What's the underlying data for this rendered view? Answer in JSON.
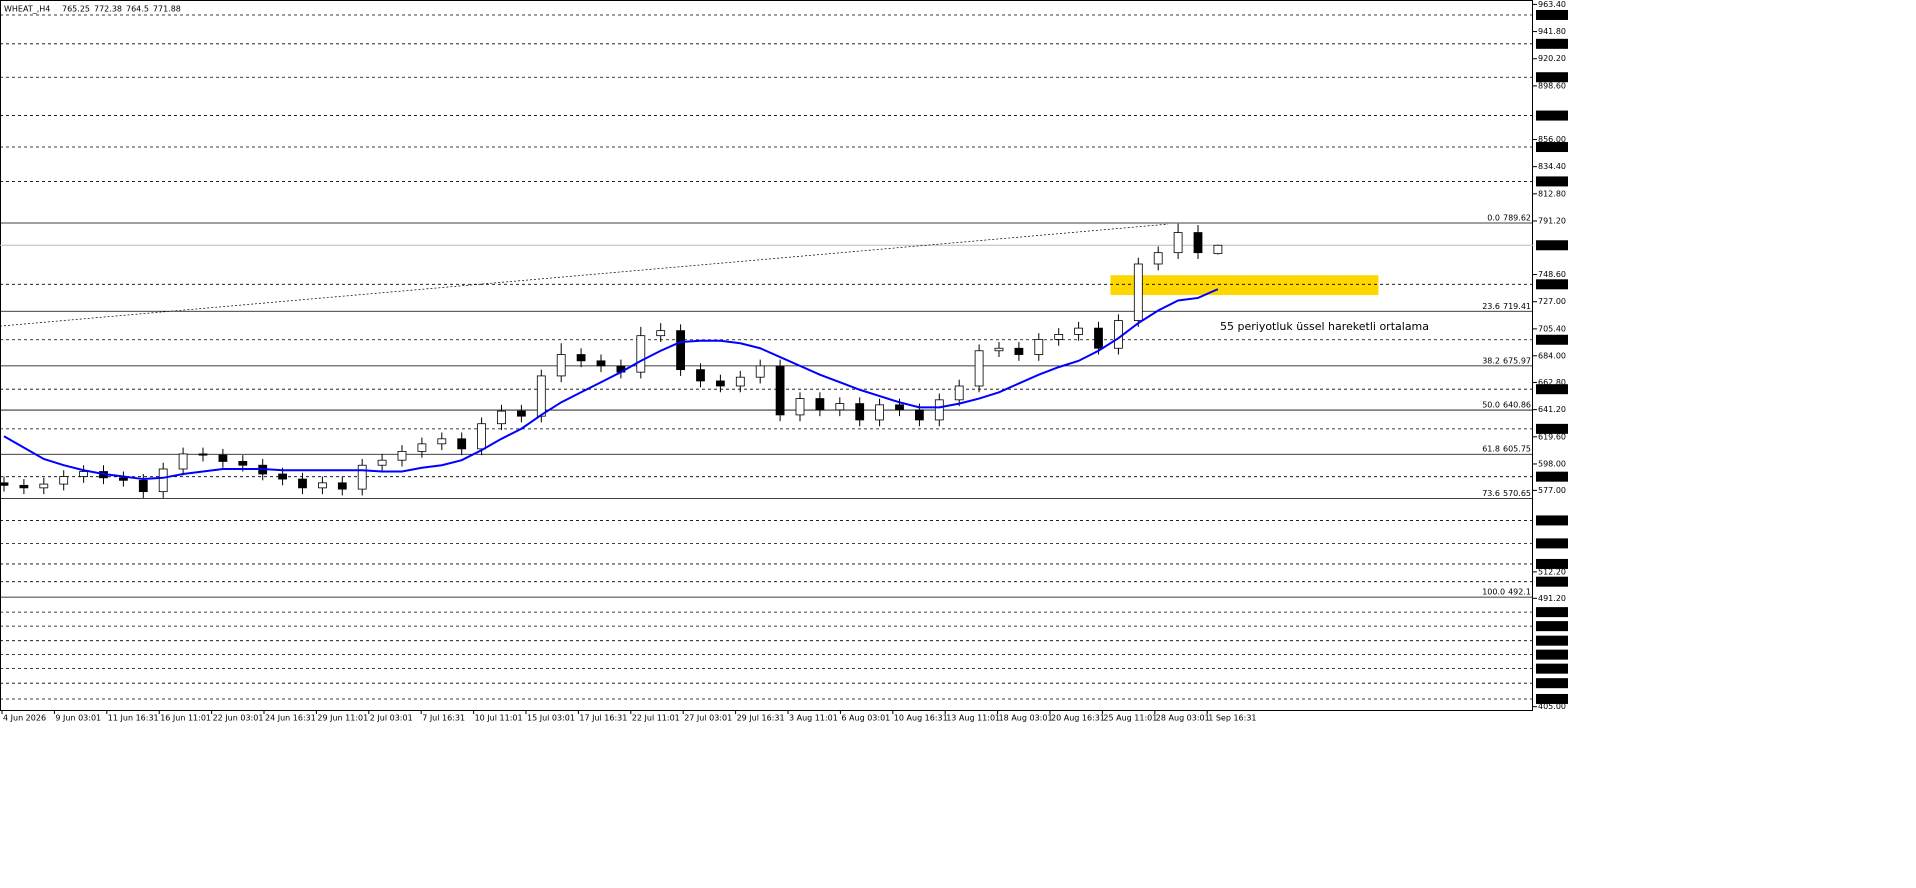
{
  "chart_data": {
    "type": "candlestick",
    "title": "WHEAT_,H4",
    "categories": [
      "4 Jun 2026",
      "9 Jun 03:01",
      "11 Jun 16:31",
      "16 Jun 11:01",
      "22 Jun 03:01",
      "24 Jun 16:31",
      "29 Jun 11:01",
      "2 Jul 03:01",
      "7 Jul 16:31",
      "10 Jul 11:01",
      "15 Jul 03:01",
      "17 Jul 16:31",
      "22 Jul 11:01",
      "27 Jul 03:01",
      "29 Jul 16:31",
      "3 Aug 11:01",
      "6 Aug 03:01",
      "10 Aug 16:31",
      "13 Aug 11:01",
      "18 Aug 03:01",
      "20 Aug 16:31",
      "25 Aug 11:01",
      "28 Aug 03:01",
      "1 Sep 16:31"
    ],
    "open": [
      583,
      581,
      579,
      582,
      588,
      592,
      587,
      585,
      576,
      594,
      606,
      605,
      600,
      597,
      590,
      586,
      579,
      583,
      578,
      597,
      601,
      608,
      614,
      618,
      610,
      630,
      640,
      636,
      668,
      685,
      680,
      676,
      671,
      700,
      704,
      673,
      664,
      660,
      667,
      676,
      637,
      650,
      641,
      646,
      633,
      645,
      641,
      633,
      649,
      660,
      688,
      690,
      685,
      697,
      701,
      706,
      690,
      712,
      757,
      766,
      782,
      765.25
    ],
    "high": [
      588,
      586,
      587,
      593,
      597,
      597,
      592,
      590,
      599,
      611,
      611,
      610,
      605,
      602,
      595,
      591,
      588,
      588,
      602,
      606,
      613,
      619,
      623,
      623,
      635,
      645,
      645,
      673,
      694,
      690,
      685,
      681,
      707,
      710,
      709,
      678,
      669,
      672,
      681,
      681,
      655,
      655,
      651,
      651,
      650,
      650,
      646,
      654,
      665,
      693,
      695,
      695,
      702,
      706,
      711,
      711,
      717,
      762,
      771,
      789,
      788,
      772.38
    ],
    "low": [
      576,
      574,
      574,
      577,
      583,
      582,
      580,
      571,
      571,
      589,
      600,
      595,
      592,
      585,
      581,
      574,
      574,
      573,
      573,
      592,
      596,
      603,
      609,
      605,
      605,
      625,
      631,
      631,
      663,
      675,
      671,
      666,
      666,
      695,
      668,
      659,
      655,
      655,
      662,
      632,
      632,
      636,
      636,
      628,
      628,
      636,
      628,
      628,
      644,
      655,
      683,
      680,
      680,
      692,
      696,
      685,
      685,
      707,
      752,
      761,
      761,
      764.5
    ],
    "close": [
      581,
      579,
      582,
      588,
      592,
      587,
      585,
      576,
      594,
      606,
      605,
      600,
      597,
      590,
      586,
      579,
      583,
      578,
      597,
      601,
      608,
      614,
      618,
      610,
      630,
      640,
      636,
      668,
      685,
      680,
      676,
      671,
      700,
      704,
      673,
      664,
      660,
      667,
      676,
      637,
      650,
      641,
      646,
      633,
      645,
      641,
      633,
      649,
      660,
      688,
      690,
      685,
      697,
      701,
      706,
      690,
      712,
      757,
      766,
      782,
      766,
      771.88
    ],
    "ema": {
      "color": "#0000ff",
      "values": [
        620,
        611,
        602,
        597,
        593,
        590,
        588,
        586,
        587,
        590,
        592,
        594,
        594,
        594,
        593,
        593,
        593,
        593,
        593,
        592,
        592,
        595,
        597,
        601,
        609,
        618,
        626,
        637,
        647,
        655,
        663,
        671,
        680,
        688,
        695,
        696,
        696,
        694,
        690,
        683,
        676,
        669,
        663,
        657,
        652,
        647,
        643,
        643,
        646,
        650,
        655,
        662,
        669,
        675,
        680,
        688,
        698,
        710,
        720,
        728,
        730,
        737
      ]
    },
    "annotation": "55 periyotluk üssel hareketli ortalama",
    "zone": {
      "color": "#ffd700",
      "values": [
        732.3,
        748.1
      ]
    },
    "trendline": {
      "x": [
        -0.2,
        58.5
      ],
      "values": [
        707.6,
        788.7
      ]
    },
    "fibonacci": [
      {
        "level": "0.0",
        "value": 789.62
      },
      {
        "level": "23.6",
        "value": 719.41
      },
      {
        "level": "38.2",
        "value": 675.97
      },
      {
        "level": "50.0",
        "value": 640.86
      },
      {
        "level": "61.8",
        "value": 605.75
      },
      {
        "level": "73.6",
        "value": 570.65
      },
      {
        "level": "100.0",
        "value": 492.1
      }
    ],
    "levels": [
      {
        "value": 955,
        "label": "955.00"
      },
      {
        "value": 932.05,
        "label": "932.05"
      },
      {
        "value": 905.5,
        "label": "905.50"
      },
      {
        "value": 875,
        "label": "875.00"
      },
      {
        "value": 850,
        "label": "850.00"
      },
      {
        "value": 822.65,
        "label": "822.65"
      },
      {
        "value": 740.85,
        "label": "740.85"
      },
      {
        "value": 696.75,
        "label": "696.75"
      },
      {
        "value": 657.45,
        "label": "657.45"
      },
      {
        "value": 625.9,
        "label": "625.90"
      },
      {
        "value": 587.9,
        "label": "587.90"
      },
      {
        "value": 553.1,
        "label": "553.10"
      },
      {
        "value": 534.85,
        "label": "534.85"
      },
      {
        "value": 518.5,
        "label": "518.50"
      },
      {
        "value": 504.4,
        "label": "504.40"
      },
      {
        "value": 480.2,
        "label": "480.20"
      },
      {
        "value": 469.05,
        "label": "469.05"
      },
      {
        "value": 457.5,
        "label": "457.50"
      },
      {
        "value": 446.4,
        "label": "446.40"
      },
      {
        "value": 435.25,
        "label": "435.25"
      },
      {
        "value": 423.7,
        "label": "423.70"
      },
      {
        "value": 411.15,
        "label": "411.15"
      }
    ],
    "ylim": [
      405,
      963.4
    ],
    "yticks": [
      {
        "value": 963.4,
        "label": "963.40"
      },
      {
        "value": 941.8,
        "label": "941.80"
      },
      {
        "value": 920.2,
        "label": "920.20"
      },
      {
        "value": 898.6,
        "label": "898.60"
      },
      {
        "value": 856,
        "label": "856.00"
      },
      {
        "value": 834.4,
        "label": "834.40"
      },
      {
        "value": 812.8,
        "label": "812.80"
      },
      {
        "value": 791.2,
        "label": "791.20"
      },
      {
        "value": 748.6,
        "label": "748.60"
      },
      {
        "value": 727,
        "label": "727.00"
      },
      {
        "value": 705.4,
        "label": "705.40"
      },
      {
        "value": 684,
        "label": "684.00"
      },
      {
        "value": 662.8,
        "label": "662.80"
      },
      {
        "value": 641.2,
        "label": "641.20"
      },
      {
        "value": 619.6,
        "label": "619.60"
      },
      {
        "value": 598,
        "label": "598.00"
      },
      {
        "value": 577,
        "label": "577.00"
      },
      {
        "value": 512.2,
        "label": "512.20"
      },
      {
        "value": 491.2,
        "label": "491.20"
      },
      {
        "value": 405,
        "label": "405.00"
      }
    ]
  }
}
